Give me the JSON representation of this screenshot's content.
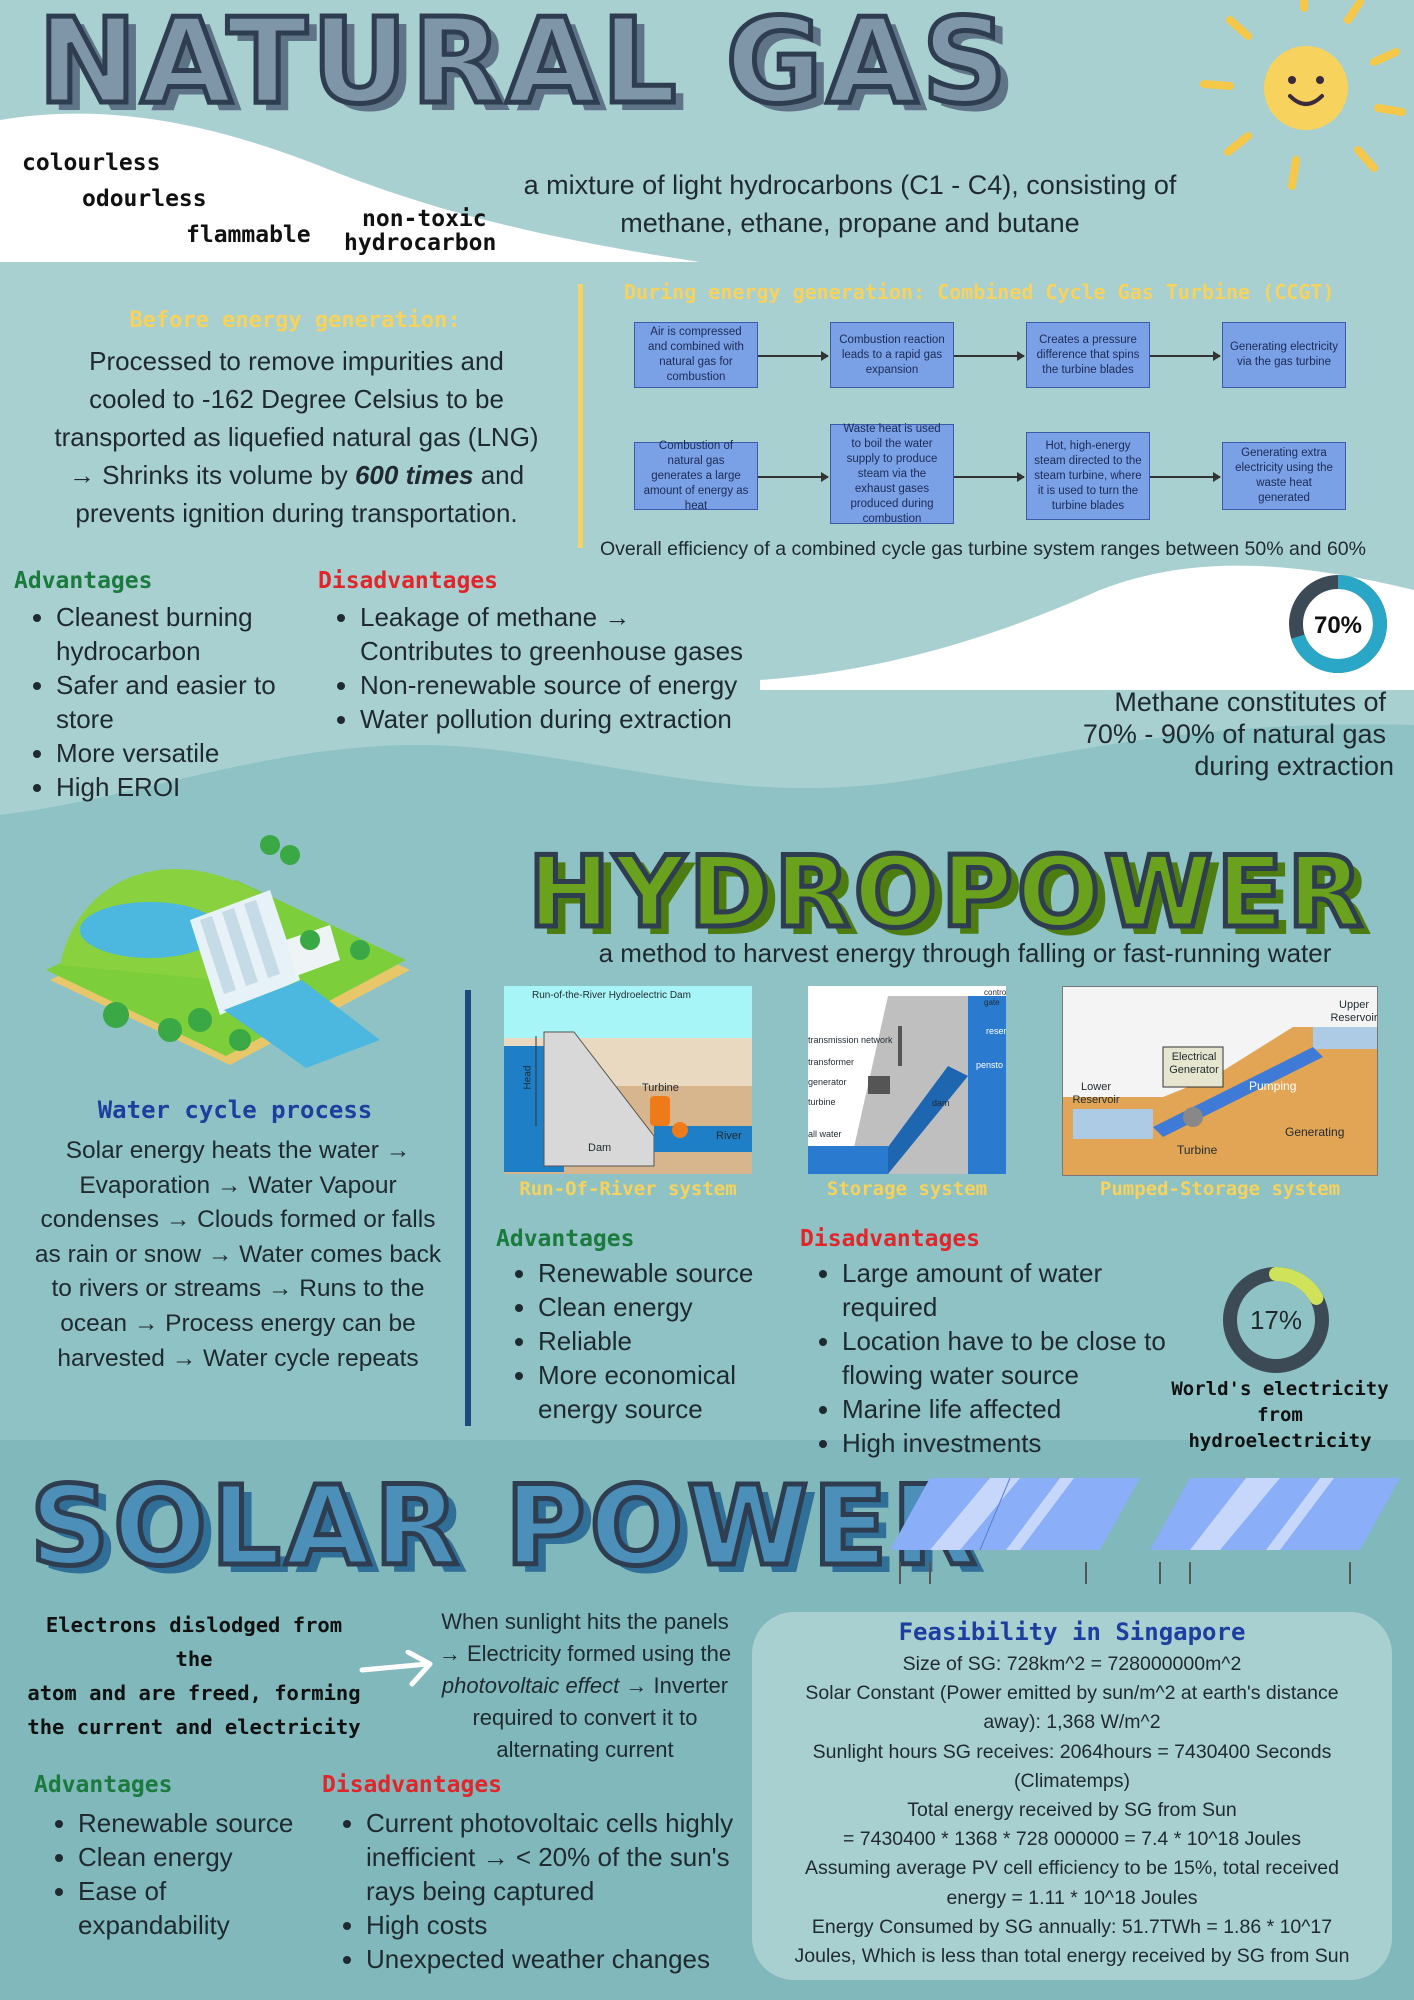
{
  "natural_gas": {
    "title": "NATURAL GAS",
    "props": [
      "colourless",
      "odourless",
      "flammable",
      "non-toxic",
      "hydrocarbon"
    ],
    "definition_1": "a mixture of light hydrocarbons (C1 - C4), consisting of",
    "definition_2": "methane, ethane, propane and butane",
    "before_heading": "Before energy generation:",
    "before_lines": [
      "Processed to remove impurities and",
      "cooled to -162 Degree Celsius to be",
      "transported as liquefied natural gas (LNG)"
    ],
    "before_shrink_pre": "→ Shrinks its volume by ",
    "before_shrink_em": "600 times",
    "before_shrink_post": " and",
    "before_last": "prevents ignition during transportation.",
    "during_heading": "During energy generation: Combined Cycle Gas Turbine (CCGT)",
    "flow_row1": [
      "Air is compressed and combined with natural gas for combustion",
      "Combustion reaction leads to a rapid gas expansion",
      "Creates a pressure difference that spins the turbine blades",
      "Generating electricity via the gas turbine"
    ],
    "flow_row2": [
      "Combustion of natural gas generates a large amount of energy as heat",
      "Waste heat is used to boil the water supply to produce steam via the exhaust gases produced during combustion",
      "Hot, high-energy steam directed to the steam turbine, where it is used to turn the turbine blades",
      "Generating extra electricity using the waste heat generated"
    ],
    "efficiency": "Overall efficiency of a combined cycle gas turbine system ranges between 50% and 60%",
    "advantages_heading": "Advantages",
    "advantages": [
      "Cleanest burning hydrocarbon",
      "Safer and easier to store",
      "More versatile",
      "High EROI"
    ],
    "disadvantages_heading": "Disadvantages",
    "disadvantages": [
      "Leakage of methane → Contributes to greenhouse gases",
      "Non-renewable source of energy",
      "Water pollution during extraction"
    ],
    "donut_label": "70%",
    "donut_value": 0.7,
    "methane_lines": [
      "Methane constitutes of",
      "70% - 90% of natural gas",
      "during extraction"
    ]
  },
  "hydropower": {
    "title": "HYDROPOWER",
    "definition": "a method to harvest energy through falling or fast-running water",
    "water_cycle_heading": "Water cycle process",
    "water_cycle_lines": [
      "Solar energy heats the water →",
      "Evaporation → Water Vapour",
      "condenses → Clouds formed or falls",
      "as rain or snow → Water comes back",
      "to rivers or streams → Runs to the",
      "ocean → Process energy can be",
      "harvested → Water cycle repeats"
    ],
    "diagram1": {
      "title": "Run-of-the-River Hydroelectric Dam",
      "head": "Head",
      "turbine": "Turbine",
      "river": "River",
      "dam": "Dam"
    },
    "diagram2": {
      "labels": [
        "transmission network",
        "transformer",
        "generator",
        "turbine",
        "all water",
        "control gate",
        "reser",
        "pensto",
        "dam"
      ]
    },
    "diagram3": {
      "upper": "Upper Reservoir",
      "generator": "Electrical Generator",
      "lower": "Lower Reservoir",
      "pumping": "Pumping",
      "generating": "Generating",
      "turbine": "Turbine"
    },
    "captions": [
      "Run-Of-River system",
      "Storage system",
      "Pumped-Storage system"
    ],
    "advantages_heading": "Advantages",
    "advantages": [
      "Renewable source",
      "Clean energy",
      "Reliable",
      "More economical energy source"
    ],
    "disadvantages_heading": "Disadvantages",
    "disadvantages": [
      "Large amount of water required",
      "Location have to be close to flowing water source",
      "Marine life affected",
      "High investments"
    ],
    "donut_label": "17%",
    "donut_value": 0.17,
    "donut_caption_1": "World's electricity",
    "donut_caption_2": "from hydroelectricity"
  },
  "solar": {
    "title": "SOLAR POWER",
    "electrons_lines": [
      "Electrons dislodged from the",
      "atom and are freed, forming",
      "the current and electricity"
    ],
    "sunlight_1": "When sunlight hits the panels",
    "sunlight_2": "→ Electricity formed using the",
    "sunlight_3_em": "photovoltaic effect",
    "sunlight_3_post": " → Inverter",
    "sunlight_4": "required to convert it to",
    "sunlight_5": "alternating current",
    "advantages_heading": "Advantages",
    "advantages": [
      "Renewable source",
      "Clean energy",
      "Ease of expandability"
    ],
    "disadvantages_heading": "Disadvantages",
    "disadvantages": [
      "Current photovoltaic cells highly inefficient → < 20% of the sun's rays being captured",
      "High costs",
      "Unexpected weather changes"
    ],
    "feasibility_heading": "Feasibility in Singapore",
    "feasibility_lines": [
      "Size of SG: 728km^2 = 728000000m^2",
      "Solar Constant (Power emitted by sun/m^2 at earth's distance",
      "away): 1,368 W/m^2",
      "Sunlight hours SG receives: 2064hours = 7430400 Seconds",
      "(Climatemps)",
      "Total energy received by SG from Sun",
      "= 7430400 * 1368 * 728 000000 = 7.4 * 10^18 Joules",
      "Assuming average PV cell efficiency to be 15%, total received",
      "energy = 1.11 * 10^18 Joules",
      "Energy Consumed by SG annually: 51.7TWh = 1.86 * 10^17",
      "Joules, Which is less than total energy received by SG from Sun"
    ]
  },
  "colors": {
    "top_bg": "#a9d0d1",
    "mid_bg": "#8fc2c5",
    "bot_bg": "#81b8bb",
    "yellow": "#f7d25c",
    "green_heading": "#1b7a3d",
    "red_heading": "#e0262b",
    "donut_blue": "#2aa6c6",
    "donut_lime": "#cfe25a"
  }
}
